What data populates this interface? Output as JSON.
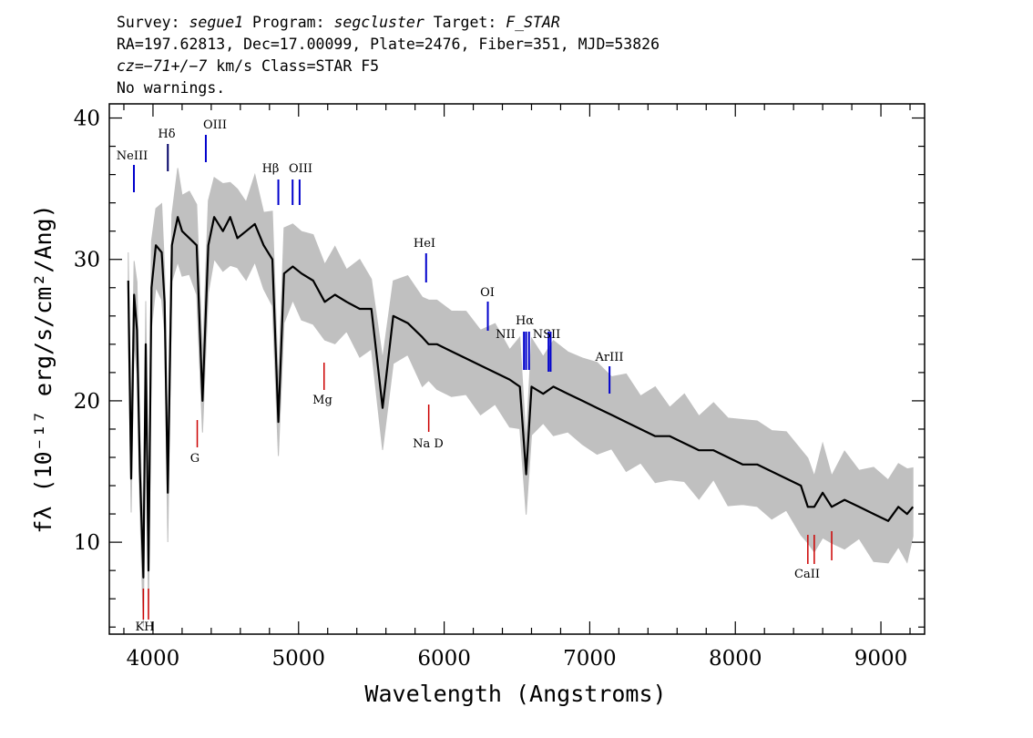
{
  "header": {
    "line1": {
      "survey_label": "Survey:",
      "survey": "segue1",
      "program_label": "Program:",
      "program": "segcluster",
      "target_label": "Target:",
      "target": "F_STAR"
    },
    "line2": "RA=197.62813, Dec=17.00099, Plate=2476, Fiber=351, MJD=53826",
    "line3": {
      "cz": "cz=−71+/−7",
      "rest": "km/s Class=STAR F5"
    },
    "line4": "No warnings."
  },
  "chart_data": {
    "type": "line",
    "xlabel": "Wavelength (Angstroms)",
    "ylabel": "fλ (10⁻¹⁷ erg/s/cm²/Ang)",
    "xlim": [
      3700,
      9300
    ],
    "ylim": [
      3.5,
      41
    ],
    "x_ticks": [
      4000,
      5000,
      6000,
      7000,
      8000,
      9000
    ],
    "y_ticks": [
      10,
      20,
      30,
      40
    ],
    "grid": false,
    "legend": "none",
    "colors": {
      "flux": "#000000",
      "error_band": "#c0c0c0",
      "emission_line": "#0000cc",
      "absorption_line": "#cc0000",
      "axes": "#000000"
    },
    "series": [
      {
        "role": "flux (black)",
        "x": [
          3830,
          3850,
          3870,
          3890,
          3910,
          3934,
          3950,
          3969,
          3990,
          4020,
          4060,
          4080,
          4102,
          4130,
          4170,
          4200,
          4250,
          4300,
          4340,
          4380,
          4420,
          4480,
          4530,
          4580,
          4640,
          4700,
          4760,
          4820,
          4861,
          4900,
          4960,
          5020,
          5100,
          5180,
          5250,
          5330,
          5420,
          5500,
          5577,
          5650,
          5750,
          5850,
          5893,
          5950,
          6050,
          6150,
          6250,
          6350,
          6450,
          6520,
          6563,
          6600,
          6680,
          6750,
          6850,
          6950,
          7050,
          7150,
          7250,
          7350,
          7450,
          7550,
          7650,
          7750,
          7850,
          7950,
          8050,
          8150,
          8250,
          8350,
          8450,
          8498,
          8542,
          8600,
          8662,
          8750,
          8850,
          8950,
          9050,
          9120,
          9180,
          9220
        ],
        "y": [
          28.5,
          14.5,
          27.5,
          25,
          15,
          7.5,
          24,
          8,
          28,
          31,
          30.5,
          27,
          13.5,
          31,
          33,
          32,
          31.5,
          31,
          20,
          31,
          33,
          32,
          33,
          31.5,
          32,
          32.5,
          31,
          30,
          18.5,
          29,
          29.5,
          29,
          28.5,
          27,
          27.5,
          27,
          26.5,
          26.5,
          19.5,
          26,
          25.5,
          24.5,
          24,
          24,
          23.5,
          23,
          22.5,
          22,
          21.5,
          21,
          14.8,
          21,
          20.5,
          21,
          20.5,
          20,
          19.5,
          19,
          18.5,
          18,
          17.5,
          17.5,
          17,
          16.5,
          16.5,
          16,
          15.5,
          15.5,
          15,
          14.5,
          14,
          12.5,
          12.5,
          13.5,
          12.5,
          13,
          12.5,
          12,
          11.5,
          12.5,
          12,
          12.5
        ]
      }
    ],
    "emission_lines": [
      {
        "name": "NeIII",
        "wavelength": 3869
      },
      {
        "name": "Hδ",
        "wavelength": 4102
      },
      {
        "name": "OIII",
        "wavelength": 4363
      },
      {
        "name": "Hβ",
        "wavelength": 4861
      },
      {
        "name": "OIII",
        "wavelength": 4959
      },
      {
        "name": "OIII",
        "wavelength": 5007
      },
      {
        "name": "HeI",
        "wavelength": 5876
      },
      {
        "name": "OI",
        "wavelength": 6300
      },
      {
        "name": "NII",
        "wavelength": 6548
      },
      {
        "name": "Hα",
        "wavelength": 6563
      },
      {
        "name": "NII",
        "wavelength": 6583
      },
      {
        "name": "SII",
        "wavelength": 6717
      },
      {
        "name": "SII",
        "wavelength": 6731
      },
      {
        "name": "ArIII",
        "wavelength": 7136
      }
    ],
    "absorption_lines": [
      {
        "name": "K",
        "wavelength": 3934
      },
      {
        "name": "H",
        "wavelength": 3969
      },
      {
        "name": "G",
        "wavelength": 4304
      },
      {
        "name": "Mg",
        "wavelength": 5175
      },
      {
        "name": "Na D",
        "wavelength": 5894
      },
      {
        "name": "CaII",
        "wavelength": 8498
      },
      {
        "name": "CaII",
        "wavelength": 8542
      },
      {
        "name": "CaII",
        "wavelength": 8662
      }
    ],
    "line_labels": {
      "NeIII": "NeIII",
      "Hdelta": "Hδ",
      "OIII_4363": "OIII",
      "Hbeta": "Hβ",
      "OIII_5007": "OIII",
      "HeI": "HeI",
      "OI": "OI",
      "NII": "NII",
      "Halpha": "Hα",
      "NII_SII": "NSII",
      "ArIII": "ArIII",
      "KH": "KH",
      "G": "G",
      "Mg": "Mg",
      "NaD": "Na D",
      "CaII": "CaII"
    }
  }
}
